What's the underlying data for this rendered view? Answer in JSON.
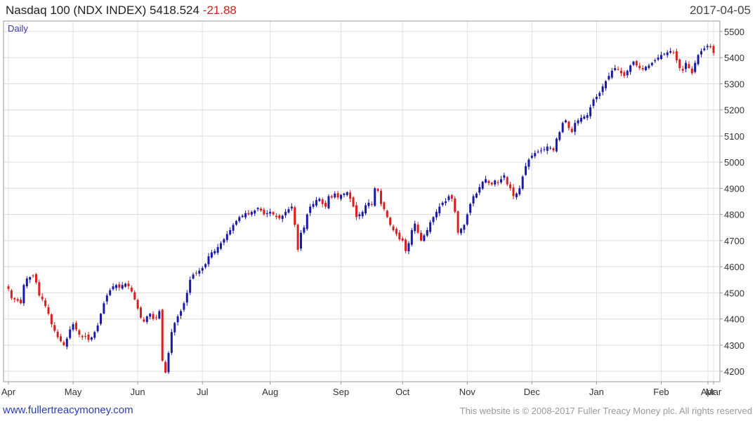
{
  "header": {
    "name": "Nasdaq 100 (NDX INDEX)",
    "last": "5418.524",
    "change": "-21.88",
    "date": "2017-04-05"
  },
  "chart_data": {
    "type": "candlestick",
    "period_label": "Daily",
    "y_ticks": [
      4200,
      4300,
      4400,
      4500,
      4600,
      4700,
      4800,
      4900,
      5000,
      5100,
      5200,
      5300,
      5400,
      5500
    ],
    "ylim": [
      4160,
      5540
    ],
    "x_months": [
      "Apr",
      "May",
      "Jun",
      "Jul",
      "Aug",
      "Sep",
      "Oct",
      "Nov",
      "Dec",
      "Jan",
      "Feb",
      "Mar",
      "Apr"
    ],
    "grid": true,
    "up_color": "#1a1aa6",
    "down_color": "#d91e1e",
    "close_series": [
      4515,
      4480,
      4475,
      4470,
      4460,
      4530,
      4555,
      4560,
      4565,
      4540,
      4490,
      4475,
      4450,
      4420,
      4380,
      4355,
      4330,
      4315,
      4300,
      4325,
      4360,
      4380,
      4360,
      4340,
      4330,
      4335,
      4320,
      4330,
      4350,
      4375,
      4420,
      4460,
      4490,
      4510,
      4525,
      4530,
      4520,
      4530,
      4535,
      4525,
      4505,
      4475,
      4440,
      4405,
      4390,
      4410,
      4420,
      4400,
      4405,
      4430,
      4240,
      4195,
      4270,
      4350,
      4385,
      4410,
      4430,
      4460,
      4500,
      4550,
      4570,
      4575,
      4585,
      4595,
      4610,
      4640,
      4655,
      4660,
      4675,
      4690,
      4705,
      4725,
      4740,
      4760,
      4775,
      4790,
      4795,
      4805,
      4800,
      4810,
      4815,
      4825,
      4815,
      4800,
      4805,
      4810,
      4800,
      4790,
      4785,
      4795,
      4810,
      4820,
      4830,
      4760,
      4665,
      4730,
      4750,
      4800,
      4830,
      4840,
      4855,
      4860,
      4840,
      4830,
      4870,
      4865,
      4880,
      4865,
      4875,
      4880,
      4885,
      4860,
      4830,
      4790,
      4800,
      4810,
      4835,
      4845,
      4840,
      4900,
      4890,
      4840,
      4820,
      4790,
      4760,
      4740,
      4725,
      4705,
      4700,
      4660,
      4690,
      4740,
      4765,
      4730,
      4700,
      4720,
      4740,
      4770,
      4790,
      4810,
      4830,
      4845,
      4850,
      4870,
      4860,
      4810,
      4730,
      4745,
      4760,
      4800,
      4840,
      4870,
      4880,
      4905,
      4925,
      4935,
      4920,
      4915,
      4930,
      4920,
      4935,
      4950,
      4915,
      4900,
      4870,
      4880,
      4900,
      4945,
      4985,
      5010,
      5025,
      5035,
      5040,
      5045,
      5050,
      5060,
      5055,
      5045,
      5090,
      5115,
      5150,
      5160,
      5130,
      5115,
      5150,
      5160,
      5170,
      5175,
      5180,
      5210,
      5240,
      5250,
      5265,
      5290,
      5310,
      5330,
      5350,
      5360,
      5355,
      5340,
      5330,
      5350,
      5370,
      5385,
      5370,
      5360,
      5355,
      5365,
      5370,
      5380,
      5390,
      5400,
      5410,
      5415,
      5420,
      5425,
      5420,
      5390,
      5360,
      5350,
      5380,
      5360,
      5340,
      5380,
      5410,
      5425,
      5435,
      5445,
      5440,
      5418
    ]
  },
  "footer": {
    "site": "www.fullertreacymoney.com",
    "notice": "This website is © 2008-2017 Fuller Treacy Money plc. All rights reserved"
  }
}
